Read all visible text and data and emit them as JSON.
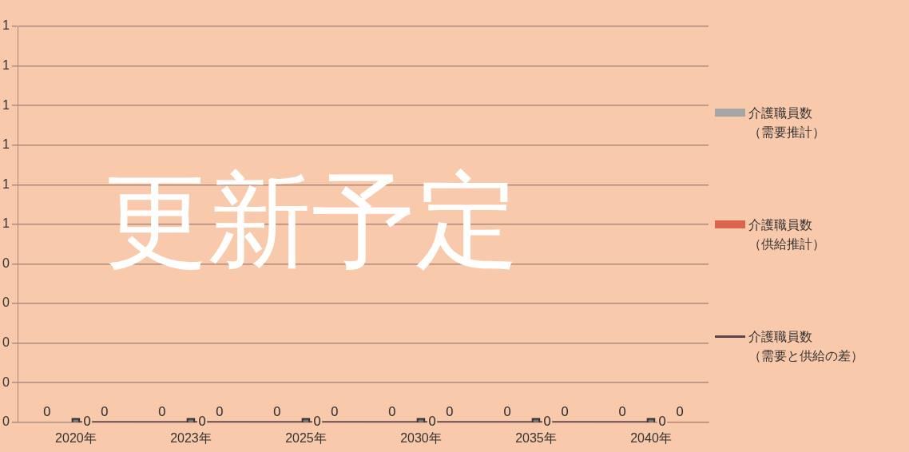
{
  "chart_data": {
    "type": "bar",
    "categories": [
      "2020年",
      "2023年",
      "2025年",
      "2030年",
      "2035年",
      "2040年"
    ],
    "series": [
      {
        "name": "介護職員数（需要推計）",
        "color": "#a6a6a6",
        "values": [
          0,
          0,
          0,
          0,
          0,
          0
        ]
      },
      {
        "name": "介護職員数（供給推計）",
        "color": "#d9664a",
        "values": [
          0,
          0,
          0,
          0,
          0,
          0
        ]
      },
      {
        "name": "介護職員数（需要と供給の差）",
        "type": "line",
        "color": "#5b4452",
        "values": [
          0,
          0,
          0,
          0,
          0,
          0
        ]
      }
    ],
    "ylim": [
      0,
      1
    ],
    "yticks": [
      0,
      {
        "value": 0.1,
        "label": "0"
      },
      {
        "value": 0.2,
        "label": "0"
      },
      {
        "value": 0.3,
        "label": "0"
      },
      {
        "value": 0.4,
        "label": "0"
      },
      {
        "value": 0.5,
        "label": "1"
      },
      {
        "value": 0.6,
        "label": "1"
      },
      {
        "value": 0.7,
        "label": "1"
      },
      {
        "value": 0.8,
        "label": "1"
      },
      {
        "value": 0.9,
        "label": "1"
      },
      1
    ],
    "grid": "y",
    "legend": "right",
    "marker": "square",
    "line_style": "solid",
    "data_labels": true,
    "annotations": [
      "更新予定"
    ]
  }
}
